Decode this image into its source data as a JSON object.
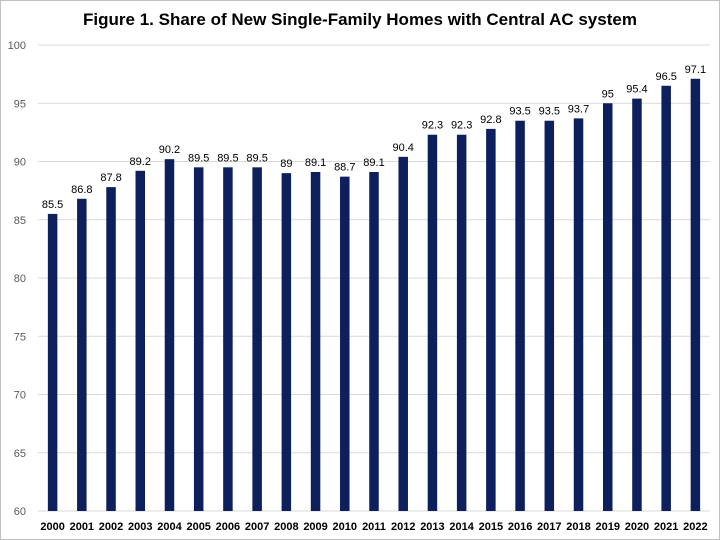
{
  "chart_data": {
    "type": "bar",
    "title": "Figure 1. Share of New Single-Family Homes with Central AC system",
    "xlabel": "",
    "ylabel": "",
    "ylim": [
      60,
      100
    ],
    "yticks": [
      60,
      65,
      70,
      75,
      80,
      85,
      90,
      95,
      100
    ],
    "grid": true,
    "legend": "none",
    "bar_color": "#0d1f5c",
    "categories": [
      "2000",
      "2001",
      "2002",
      "2003",
      "2004",
      "2005",
      "2006",
      "2007",
      "2008",
      "2009",
      "2010",
      "2011",
      "2012",
      "2013",
      "2014",
      "2015",
      "2016",
      "2017",
      "2018",
      "2019",
      "2020",
      "2021",
      "2022"
    ],
    "values": [
      85.5,
      86.8,
      87.8,
      89.2,
      90.2,
      89.5,
      89.5,
      89.5,
      89,
      89.1,
      88.7,
      89.1,
      90.4,
      92.3,
      92.3,
      92.8,
      93.5,
      93.5,
      93.7,
      95,
      95.4,
      96.5,
      97.1
    ]
  }
}
